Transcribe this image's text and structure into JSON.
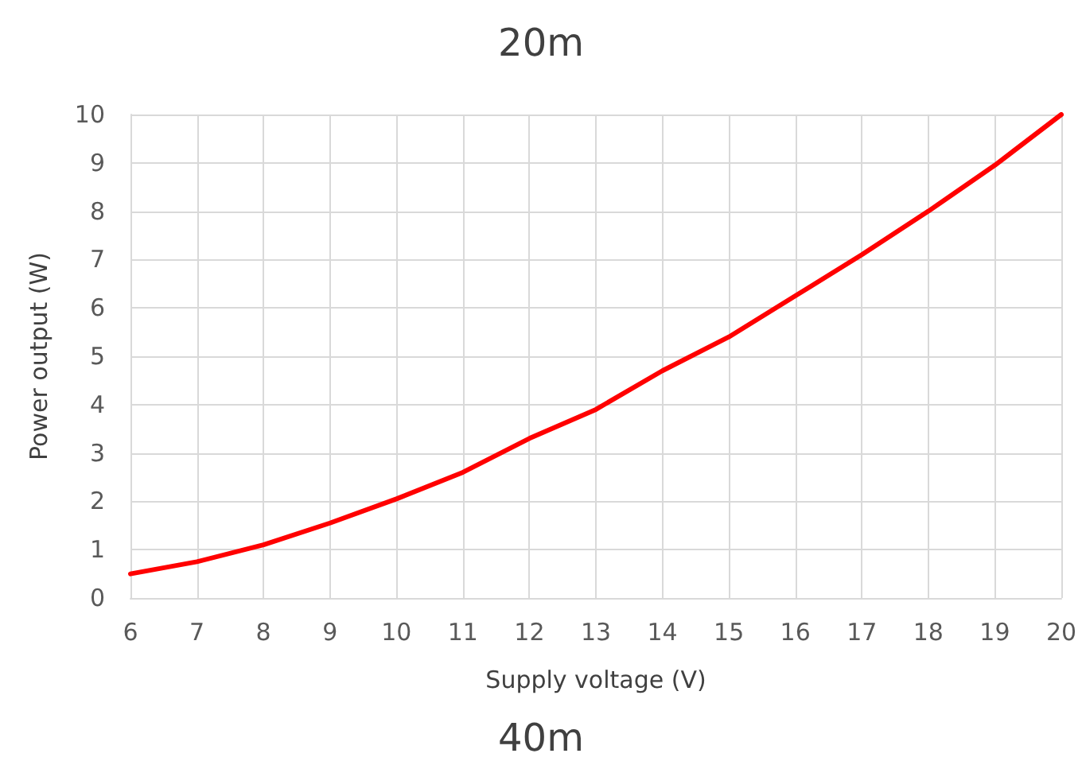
{
  "chart_data": {
    "type": "line",
    "title": "20m",
    "xlabel": "Supply voltage (V)",
    "ylabel": "Power output (W)",
    "annotations": [
      "40m"
    ],
    "x": [
      6,
      7,
      8,
      9,
      10,
      11,
      12,
      13,
      14,
      15,
      16,
      17,
      18,
      19,
      20
    ],
    "series": [
      {
        "color": "#ff0000",
        "values": [
          0.5,
          0.75,
          1.1,
          1.55,
          2.05,
          2.6,
          3.3,
          3.9,
          4.7,
          5.4,
          6.25,
          7.1,
          8.0,
          8.95,
          10
        ]
      }
    ],
    "xlim": [
      6,
      20
    ],
    "xticks": [
      6,
      7,
      8,
      9,
      10,
      11,
      12,
      13,
      14,
      15,
      16,
      17,
      18,
      19,
      20
    ],
    "ylim": [
      0,
      10
    ],
    "yticks": [
      0,
      1,
      2,
      3,
      4,
      5,
      6,
      7,
      8,
      9,
      10
    ],
    "grid": true,
    "marker": "none",
    "line_style": "solid"
  }
}
